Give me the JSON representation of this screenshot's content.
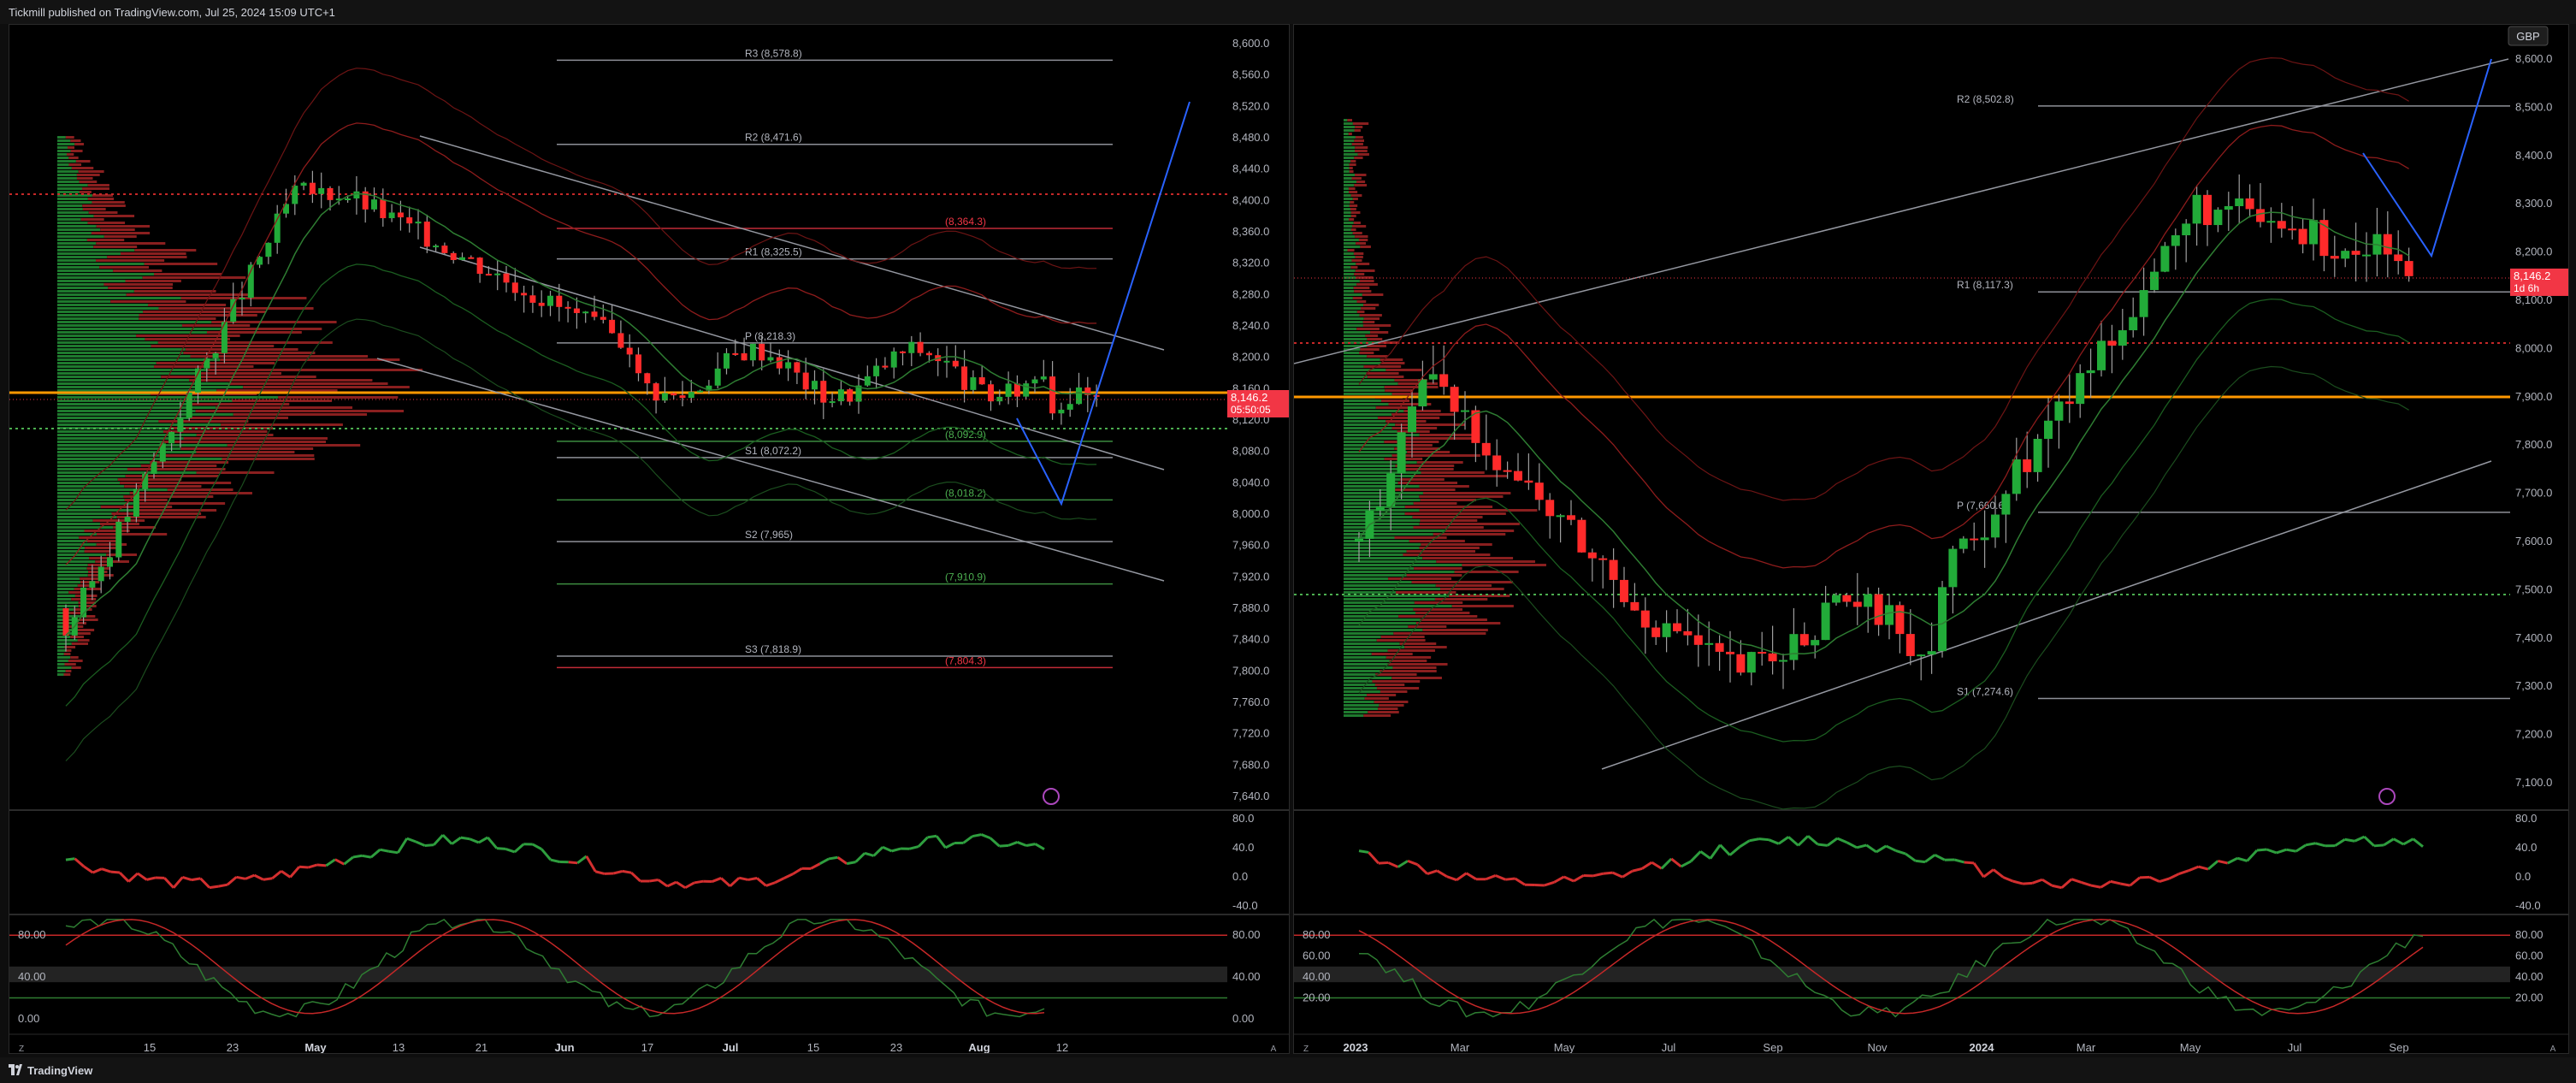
{
  "header": {
    "published_text": "Tickmill published on TradingView.com, Jul 25, 2024 15:09 UTC+1"
  },
  "footer": {
    "brand": "TradingView"
  },
  "colors": {
    "bull": "#22ab39",
    "bear": "#ff2a2a",
    "poc": "#ff9800",
    "price_tag": "#f23645",
    "projection": "#2962ff"
  },
  "left_chart": {
    "price_axis": [
      "8,600.0",
      "8,560.0",
      "8,520.0",
      "8,480.0",
      "8,440.0",
      "8,400.0",
      "8,360.0",
      "8,320.0",
      "8,280.0",
      "8,240.0",
      "8,200.0",
      "8,160.0",
      "8,120.0",
      "8,080.0",
      "8,040.0",
      "8,000.0",
      "7,960.0",
      "7,920.0",
      "7,880.0",
      "7,840.0",
      "7,800.0",
      "7,760.0",
      "7,720.0",
      "7,680.0",
      "7,640.0"
    ],
    "price_tag": {
      "value": "8,146.2",
      "countdown": "05:50:05"
    },
    "pivot_levels": [
      {
        "label": "R3 (8,578.8)",
        "value": 8578.8,
        "color": "#b2b5be"
      },
      {
        "label": "R2 (8,471.6)",
        "value": 8471.6,
        "color": "#b2b5be"
      },
      {
        "label": "(8,364.3)",
        "value": 8364.3,
        "color": "#f23645"
      },
      {
        "label": "R1 (8,325.5)",
        "value": 8325.5,
        "color": "#b2b5be"
      },
      {
        "label": "P (8,218.3)",
        "value": 8218.3,
        "color": "#b2b5be"
      },
      {
        "label": "(8,092.9)",
        "value": 8092.9,
        "color": "#4caf50"
      },
      {
        "label": "S1 (8,072.2)",
        "value": 8072.2,
        "color": "#b2b5be"
      },
      {
        "label": "(8,018.2)",
        "value": 8018.2,
        "color": "#4caf50"
      },
      {
        "label": "S2 (7,965)",
        "value": 7965,
        "color": "#b2b5be"
      },
      {
        "label": "(7,910.9)",
        "value": 7910.9,
        "color": "#4caf50"
      },
      {
        "label": "S3 (7,818.9)",
        "value": 7818.9,
        "color": "#b2b5be"
      },
      {
        "label": "(7,804.3)",
        "value": 7804.3,
        "color": "#f23645"
      }
    ],
    "rsi_axis": [
      "80.0",
      "40.0",
      "0.0",
      "-40.0"
    ],
    "stoch_axis": [
      "80.00",
      "40.00",
      "0.00"
    ],
    "date_axis": [
      {
        "label": "15",
        "bold": false
      },
      {
        "label": "23",
        "bold": false
      },
      {
        "label": "May",
        "bold": true
      },
      {
        "label": "13",
        "bold": false
      },
      {
        "label": "21",
        "bold": false
      },
      {
        "label": "Jun",
        "bold": true
      },
      {
        "label": "17",
        "bold": false
      },
      {
        "label": "Jul",
        "bold": true
      },
      {
        "label": "15",
        "bold": false
      },
      {
        "label": "23",
        "bold": false
      },
      {
        "label": "Aug",
        "bold": true
      },
      {
        "label": "12",
        "bold": false
      }
    ]
  },
  "right_chart": {
    "currency_badge": "GBP",
    "price_axis": [
      "8,600.0",
      "8,500.0",
      "8,400.0",
      "8,300.0",
      "8,200.0",
      "8,100.0",
      "8,000.0",
      "7,900.0",
      "7,800.0",
      "7,700.0",
      "7,600.0",
      "7,500.0",
      "7,400.0",
      "7,300.0",
      "7,200.0",
      "7,100.0"
    ],
    "price_tag": {
      "value": "8,146.2",
      "countdown": "1d 6h"
    },
    "pivot_levels": [
      {
        "label": "R2 (8,502.8)",
        "value": 8502.8,
        "color": "#b2b5be"
      },
      {
        "label": "R1 (8,117.3)",
        "value": 8117.3,
        "color": "#b2b5be"
      },
      {
        "label": "P (7,660.6)",
        "value": 7660.6,
        "color": "#b2b5be"
      },
      {
        "label": "S1 (7,274.6)",
        "value": 7274.6,
        "color": "#b2b5be"
      }
    ],
    "rsi_axis": [
      "80.0",
      "40.0",
      "0.0",
      "-40.0"
    ],
    "stoch_axis": [
      "80.00",
      "60.00",
      "40.00",
      "20.00"
    ],
    "date_axis": [
      {
        "label": "2023",
        "bold": true
      },
      {
        "label": "Mar",
        "bold": false
      },
      {
        "label": "May",
        "bold": false
      },
      {
        "label": "Jul",
        "bold": false
      },
      {
        "label": "Sep",
        "bold": false
      },
      {
        "label": "Nov",
        "bold": false
      },
      {
        "label": "2024",
        "bold": true
      },
      {
        "label": "Mar",
        "bold": false
      },
      {
        "label": "May",
        "bold": false
      },
      {
        "label": "Jul",
        "bold": false
      },
      {
        "label": "Sep",
        "bold": false
      }
    ]
  }
}
